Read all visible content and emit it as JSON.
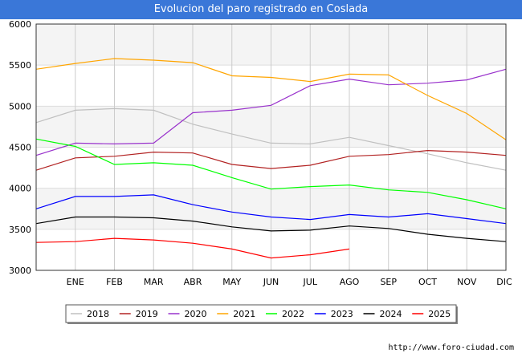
{
  "header": {
    "title": "Evolucion del paro registrado en Coslada"
  },
  "footer": {
    "url": "http://www.foro-ciudad.com"
  },
  "chart_data": {
    "type": "line",
    "title": "Evolucion del paro registrado en Coslada",
    "xlabel": "",
    "ylabel": "",
    "ylim": [
      3000,
      6000
    ],
    "yticks": [
      3000,
      3500,
      4000,
      4500,
      5000,
      5500,
      6000
    ],
    "categories": [
      "",
      "ENE",
      "FEB",
      "MAR",
      "ABR",
      "MAY",
      "JUN",
      "JUL",
      "AGO",
      "SEP",
      "OCT",
      "NOV",
      "DIC"
    ],
    "grid": true,
    "legend_position": "bottom",
    "series": [
      {
        "name": "2018",
        "color": "#c0c0c0",
        "values": [
          4800,
          4950,
          4970,
          4950,
          4780,
          4660,
          4550,
          4540,
          4620,
          4520,
          4420,
          4310,
          4220
        ]
      },
      {
        "name": "2019",
        "color": "#b22222",
        "values": [
          4220,
          4370,
          4390,
          4440,
          4430,
          4290,
          4240,
          4280,
          4390,
          4410,
          4460,
          4440,
          4400
        ]
      },
      {
        "name": "2020",
        "color": "#9932cc",
        "values": [
          4400,
          4550,
          4540,
          4550,
          4920,
          4950,
          5010,
          5250,
          5330,
          5260,
          5280,
          5320,
          5450
        ]
      },
      {
        "name": "2021",
        "color": "#ffa500",
        "values": [
          5450,
          5520,
          5580,
          5560,
          5530,
          5370,
          5350,
          5300,
          5390,
          5380,
          5130,
          4910,
          4590
        ]
      },
      {
        "name": "2022",
        "color": "#00ff00",
        "values": [
          4600,
          4510,
          4290,
          4310,
          4280,
          4130,
          3990,
          4020,
          4040,
          3980,
          3950,
          3860,
          3750
        ]
      },
      {
        "name": "2023",
        "color": "#0000ff",
        "values": [
          3750,
          3900,
          3900,
          3920,
          3800,
          3710,
          3650,
          3620,
          3680,
          3650,
          3690,
          3630,
          3570
        ]
      },
      {
        "name": "2024",
        "color": "#000000",
        "values": [
          3570,
          3650,
          3650,
          3640,
          3600,
          3530,
          3480,
          3490,
          3540,
          3510,
          3440,
          3390,
          3350
        ]
      },
      {
        "name": "2025",
        "color": "#ff0000",
        "values": [
          3340,
          3350,
          3390,
          3370,
          3330,
          3260,
          3150,
          3190,
          3260,
          null,
          null,
          null,
          null
        ]
      }
    ]
  }
}
